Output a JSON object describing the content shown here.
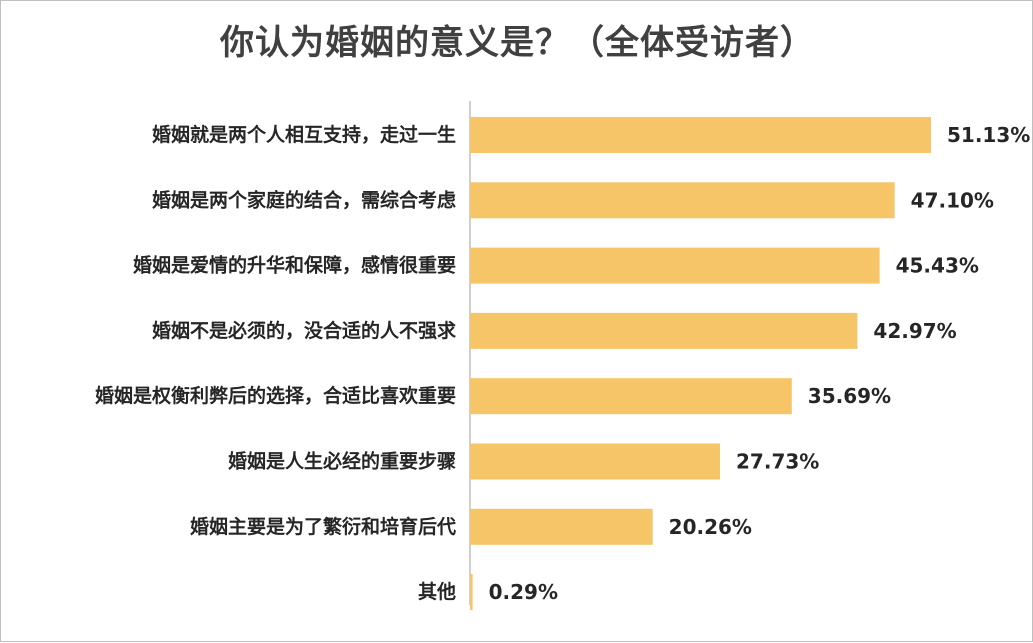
{
  "chart_data": {
    "type": "bar",
    "orientation": "horizontal",
    "title": "你认为婚姻的意义是？（全体受访者）",
    "categories": [
      "婚姻就是两个人相互支持，走过一生",
      "婚姻是两个家庭的结合，需综合考虑",
      "婚姻是爱情的升华和保障，感情很重要",
      "婚姻不是必须的，没合适的人不强求",
      "婚姻是权衡利弊后的选择，合适比喜欢重要",
      "婚姻是人生必经的重要步骤",
      "婚姻主要是为了繁衍和培育后代",
      "其他"
    ],
    "values": [
      51.13,
      47.1,
      45.43,
      42.97,
      35.69,
      27.73,
      20.26,
      0.29
    ],
    "value_labels": [
      "51.13%",
      "47.10%",
      "45.43%",
      "42.97%",
      "35.69%",
      "27.73%",
      "20.26%",
      "0.29%"
    ],
    "xlim": [
      0,
      51.13
    ],
    "grid": false,
    "legend": "none",
    "bar_color": "#F5C567",
    "axis_color": "#BFBFBF"
  }
}
